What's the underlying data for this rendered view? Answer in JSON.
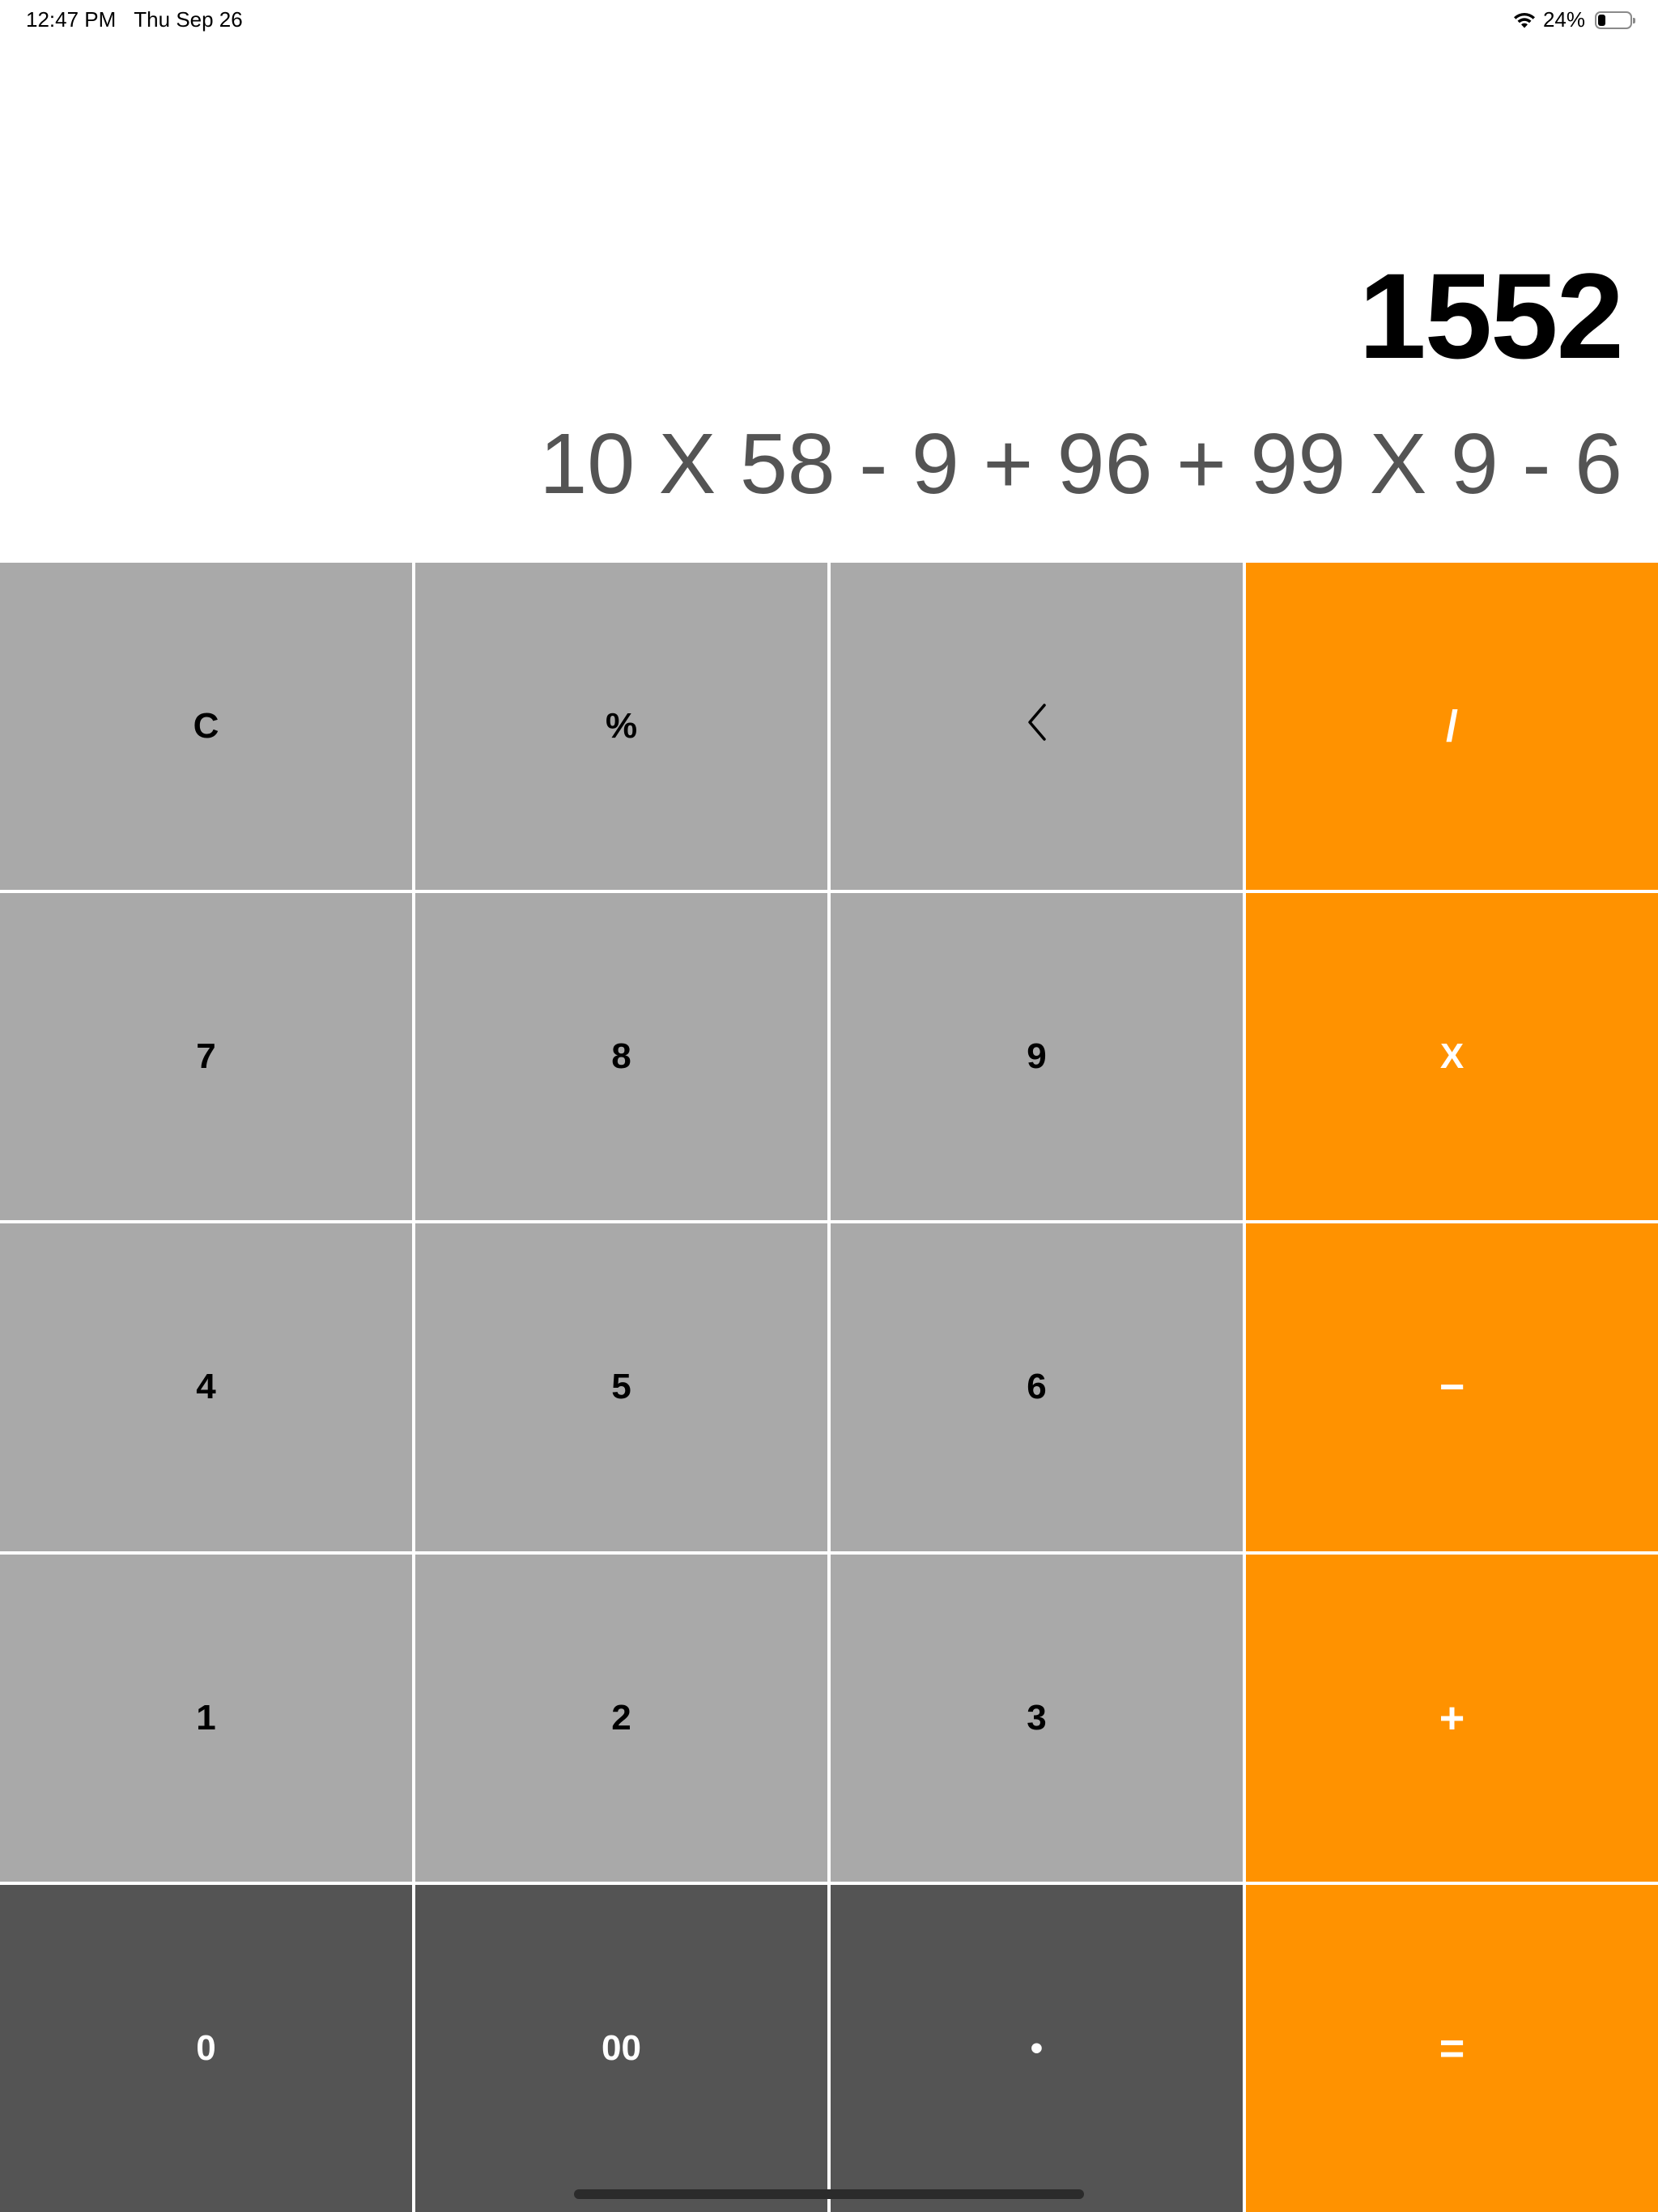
{
  "status_bar": {
    "time": "12:47 PM",
    "date": "Thu Sep 26",
    "battery_percent": "24%",
    "battery_level": 0.24,
    "icons": [
      "wifi-icon",
      "battery-icon"
    ]
  },
  "display": {
    "result": "1552",
    "expression": "10 X 58 - 9 + 96 + 99 X 9 - 6"
  },
  "keypad": {
    "row1": {
      "clear": "C",
      "percent": "%",
      "backspace_icon": "chevron-left-icon",
      "divide": "/"
    },
    "row2": {
      "seven": "7",
      "eight": "8",
      "nine": "9",
      "multiply": "X"
    },
    "row3": {
      "four": "4",
      "five": "5",
      "six": "6",
      "subtract": "−"
    },
    "row4": {
      "one": "1",
      "two": "2",
      "three": "3",
      "add": "+"
    },
    "row5": {
      "zero": "0",
      "double_zero": "00",
      "decimal": "•",
      "equals": "="
    }
  },
  "colors": {
    "light_key": "#a9a9a9",
    "dark_key": "#545454",
    "operator_key": "#ff9200",
    "expression_text": "#545454"
  }
}
